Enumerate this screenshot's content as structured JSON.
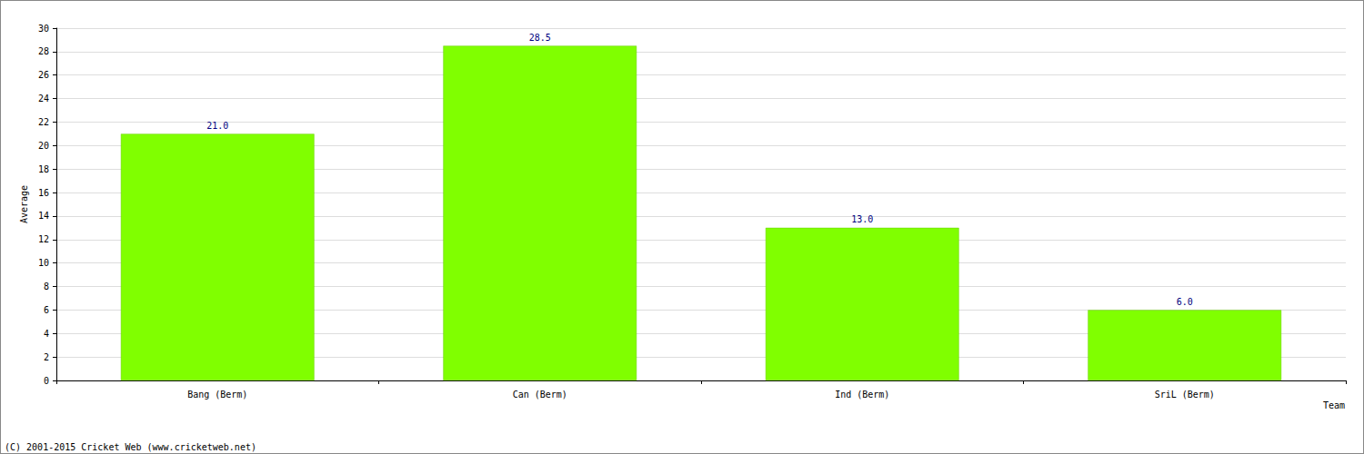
{
  "chart_data": {
    "type": "bar",
    "categories": [
      "Bang (Berm)",
      "Can (Berm)",
      "Ind (Berm)",
      "SriL (Berm)"
    ],
    "values": [
      21.0,
      28.5,
      13.0,
      6.0
    ],
    "value_labels": [
      "21.0",
      "28.5",
      "13.0",
      "6.0"
    ],
    "data_labels": true,
    "color": "#80ff00",
    "x_label": "Team",
    "y_label": "Average",
    "annotation": "(C) 2001-2015 Cricket Web (www.cricketweb.net)",
    "ylim": [
      0,
      30
    ],
    "yticks": [
      0,
      2,
      4,
      6,
      8,
      10,
      12,
      14,
      16,
      18,
      20,
      22,
      24,
      26,
      28,
      30
    ],
    "grid": true
  }
}
